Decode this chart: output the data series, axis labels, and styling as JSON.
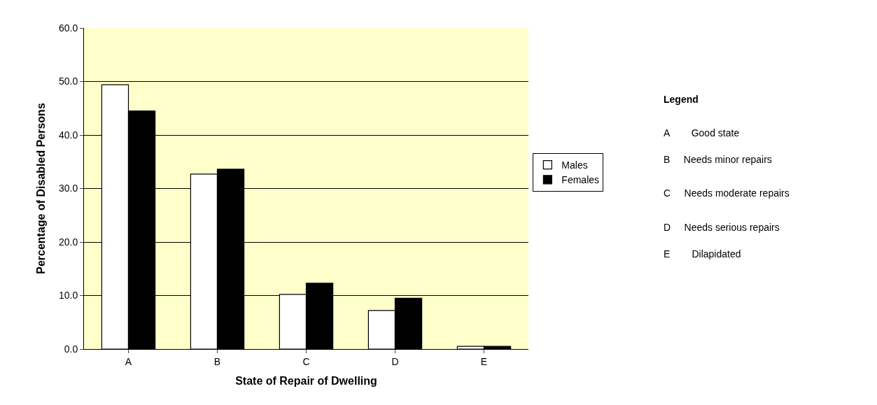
{
  "chart_data": {
    "type": "bar",
    "xlabel": "State of Repair of Dwelling",
    "ylabel": "Percentage of Disabled Persons",
    "categories": [
      "A",
      "B",
      "C",
      "D",
      "E"
    ],
    "series": [
      {
        "name": "Males",
        "color": "#ffffff",
        "values": [
          49.4,
          32.7,
          10.2,
          7.2,
          0.5
        ]
      },
      {
        "name": "Females",
        "color": "#000000",
        "values": [
          44.5,
          33.6,
          12.3,
          9.5,
          0.5
        ]
      }
    ],
    "ylim": [
      0,
      60
    ],
    "yticks": [
      {
        "value": 0,
        "label": "0.0"
      },
      {
        "value": 10,
        "label": "10.0"
      },
      {
        "value": 20,
        "label": "20.0"
      },
      {
        "value": 30,
        "label": "30.0"
      },
      {
        "value": 40,
        "label": "40.0"
      },
      {
        "value": 50,
        "label": "50.0"
      },
      {
        "value": 60,
        "label": "60.0"
      }
    ],
    "grid": "y",
    "legend": "right",
    "annotations": [
      "Legend",
      "A        Good state",
      "B     Needs minor repairs",
      "C     Needs moderate repairs",
      "D     Needs serious repairs",
      "E        Dilapidated"
    ]
  }
}
